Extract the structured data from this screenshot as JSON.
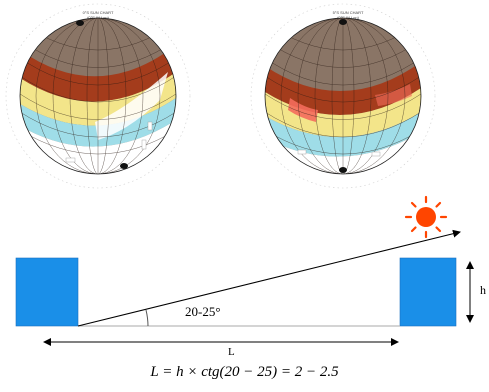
{
  "sun_charts": {
    "left": {
      "title_line1": "0°S SUN CHART",
      "title_line2": "(0°E W Lon)"
    },
    "right": {
      "title_line1": "5°S SUN CHART",
      "title_line2": "(0°E W Lon)"
    }
  },
  "diagram": {
    "angle_label": "20-25°",
    "length_label": "L",
    "height_label": "h",
    "formula": "L = h × ctg(20 − 25) = 2 − 2.5",
    "colors": {
      "building": "#1a8fe8",
      "sun": "#ff4500",
      "sky": "#8a7566",
      "band_red": "#a43c1c",
      "band_yellow": "#f3e58a",
      "band_cyan": "#9fdde8"
    }
  }
}
